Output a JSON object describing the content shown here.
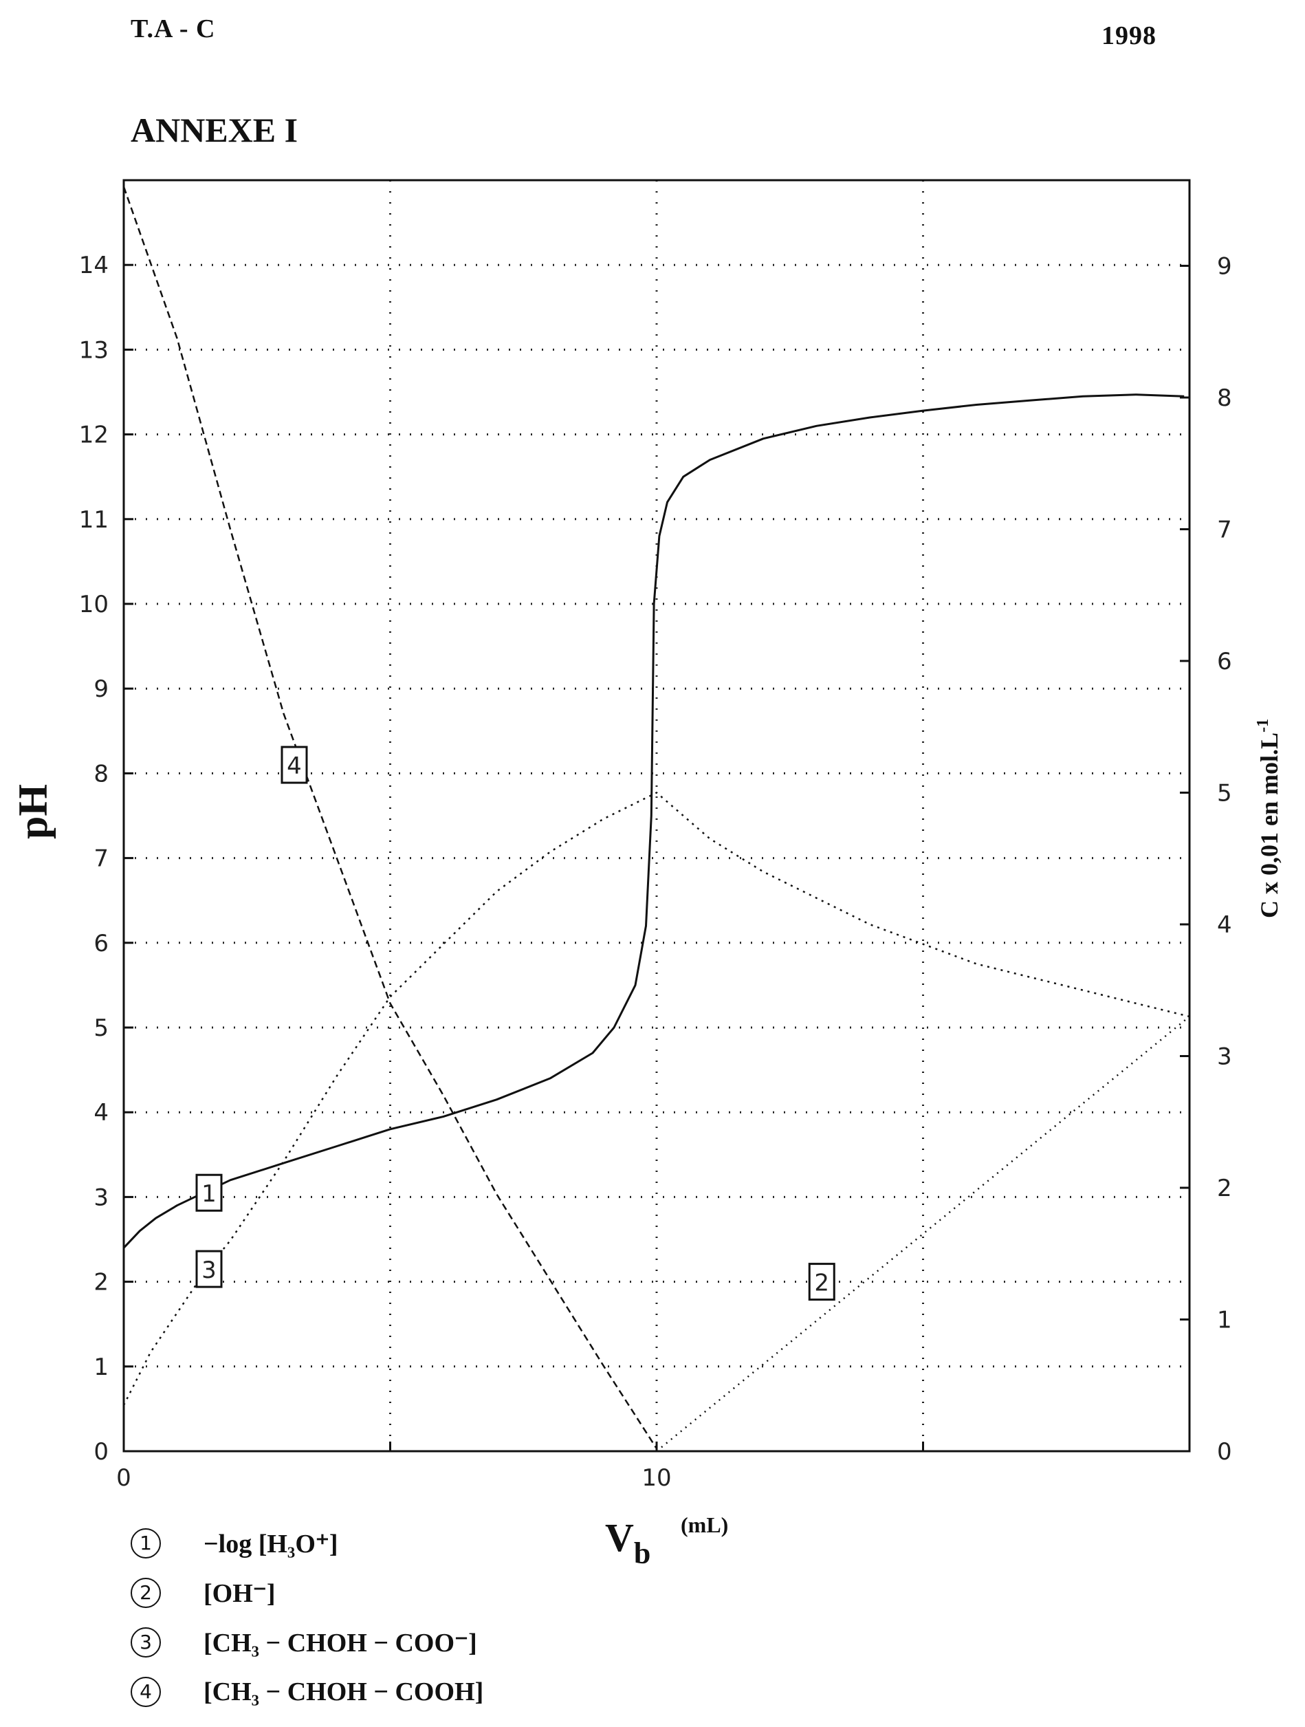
{
  "header": {
    "left": "T.A  -  C",
    "right": "1998",
    "annex": "ANNEXE I"
  },
  "chart_data": {
    "type": "line",
    "xlabel": "V",
    "xlabel_sub": "b",
    "xlabel_unit": "(mL)",
    "ylabel": "pH",
    "y2label": "C x 0,01  en  mol.L",
    "y2label_sup": "-1",
    "xlim": [
      0,
      20
    ],
    "ylim": [
      0,
      15
    ],
    "y2lim": [
      0,
      9.65
    ],
    "x_ticks": [
      0,
      10
    ],
    "y_ticks": [
      0,
      1,
      2,
      3,
      4,
      5,
      6,
      7,
      8,
      9,
      10,
      11,
      12,
      13,
      14
    ],
    "y2_ticks": [
      0,
      1,
      2,
      3,
      4,
      5,
      6,
      7,
      8,
      9
    ],
    "grid": true,
    "series": [
      {
        "id": "1",
        "axis": "left",
        "style": "solid",
        "points": [
          [
            0,
            2.4
          ],
          [
            0.3,
            2.6
          ],
          [
            0.6,
            2.75
          ],
          [
            1,
            2.9
          ],
          [
            1.5,
            3.05
          ],
          [
            2,
            3.2
          ],
          [
            3,
            3.4
          ],
          [
            4,
            3.6
          ],
          [
            5,
            3.8
          ],
          [
            6,
            3.95
          ],
          [
            7,
            4.15
          ],
          [
            8,
            4.4
          ],
          [
            8.8,
            4.7
          ],
          [
            9.2,
            5.0
          ],
          [
            9.6,
            5.5
          ],
          [
            9.8,
            6.2
          ],
          [
            9.9,
            7.5
          ],
          [
            9.95,
            10.0
          ],
          [
            10.05,
            10.8
          ],
          [
            10.2,
            11.2
          ],
          [
            10.5,
            11.5
          ],
          [
            11,
            11.7
          ],
          [
            12,
            11.95
          ],
          [
            13,
            12.1
          ],
          [
            14,
            12.2
          ],
          [
            15,
            12.28
          ],
          [
            16,
            12.35
          ],
          [
            17,
            12.4
          ],
          [
            18,
            12.45
          ],
          [
            19,
            12.47
          ],
          [
            19.9,
            12.45
          ]
        ]
      },
      {
        "id": "2",
        "axis": "right",
        "style": "dotted",
        "points": [
          [
            10,
            0
          ],
          [
            20,
            3.3
          ]
        ]
      },
      {
        "id": "3",
        "axis": "right",
        "style": "dashed-dot",
        "points": [
          [
            0,
            0.35
          ],
          [
            0.5,
            0.75
          ],
          [
            1,
            1.05
          ],
          [
            1.5,
            1.35
          ],
          [
            2,
            1.6
          ],
          [
            3,
            2.2
          ],
          [
            4,
            2.85
          ],
          [
            5,
            3.45
          ],
          [
            6,
            3.85
          ],
          [
            7,
            4.25
          ],
          [
            8,
            4.55
          ],
          [
            9,
            4.8
          ],
          [
            10,
            5.0
          ],
          [
            11,
            4.65
          ],
          [
            12,
            4.4
          ],
          [
            13,
            4.2
          ],
          [
            14,
            4.0
          ],
          [
            15,
            3.85
          ],
          [
            16,
            3.7
          ],
          [
            17,
            3.6
          ],
          [
            18,
            3.5
          ],
          [
            19,
            3.4
          ],
          [
            20,
            3.3
          ]
        ]
      },
      {
        "id": "4",
        "axis": "right",
        "style": "dashed",
        "points": [
          [
            0,
            9.6
          ],
          [
            1,
            8.45
          ],
          [
            2,
            7.0
          ],
          [
            3,
            5.6
          ],
          [
            4,
            4.5
          ],
          [
            5,
            3.4
          ],
          [
            6,
            2.7
          ],
          [
            7,
            1.95
          ],
          [
            8,
            1.3
          ],
          [
            9,
            0.65
          ],
          [
            10,
            0.02
          ]
        ]
      }
    ],
    "curve_labels": [
      {
        "text": "1",
        "x": 1.6,
        "y": 3.05,
        "axis": "left"
      },
      {
        "text": "3",
        "x": 1.6,
        "y": 2.15,
        "axis": "left"
      },
      {
        "text": "4",
        "x": 3.2,
        "y": 8.1,
        "axis": "left"
      },
      {
        "text": "2",
        "x": 13.1,
        "y": 2.0,
        "axis": "left"
      }
    ]
  },
  "legend": [
    {
      "num": "1",
      "text": "−log [H₃O⁺]"
    },
    {
      "num": "2",
      "text": "[OH⁻]"
    },
    {
      "num": "3",
      "text": "[CH₃ − CHOH − COO⁻]"
    },
    {
      "num": "4",
      "text": "[CH₃ − CHOH − COOH]"
    }
  ]
}
